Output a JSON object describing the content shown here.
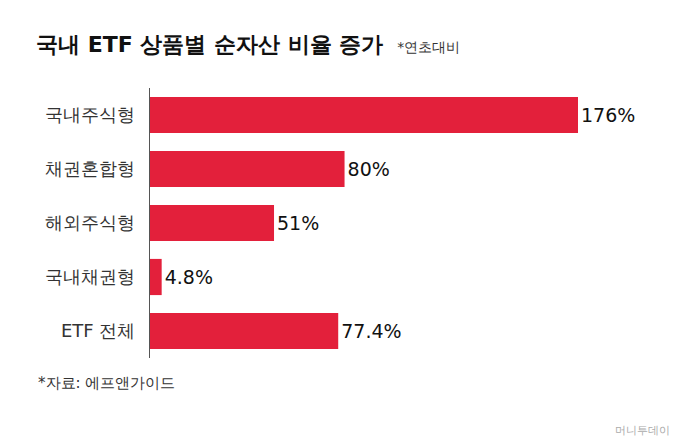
{
  "chart_data": {
    "type": "bar",
    "title": "국내 ETF 상품별 순자산 비율 증가",
    "subtitle": "*연초대비",
    "categories": [
      "국내주식형",
      "채권혼합형",
      "해외주식형",
      "국내채권형",
      "ETF 전체"
    ],
    "values": [
      176,
      80,
      51,
      4.8,
      77.4
    ],
    "value_labels": [
      "176%",
      "80%",
      "51%",
      "4.8%",
      "77.4%"
    ],
    "color": "#e3203b",
    "orientation": "horizontal",
    "data_labels": true,
    "tick_labels": "y",
    "grid": false,
    "xlim": [
      0,
      176
    ],
    "source": "*자료: 에프앤가이드",
    "credit": "머니투데이"
  }
}
